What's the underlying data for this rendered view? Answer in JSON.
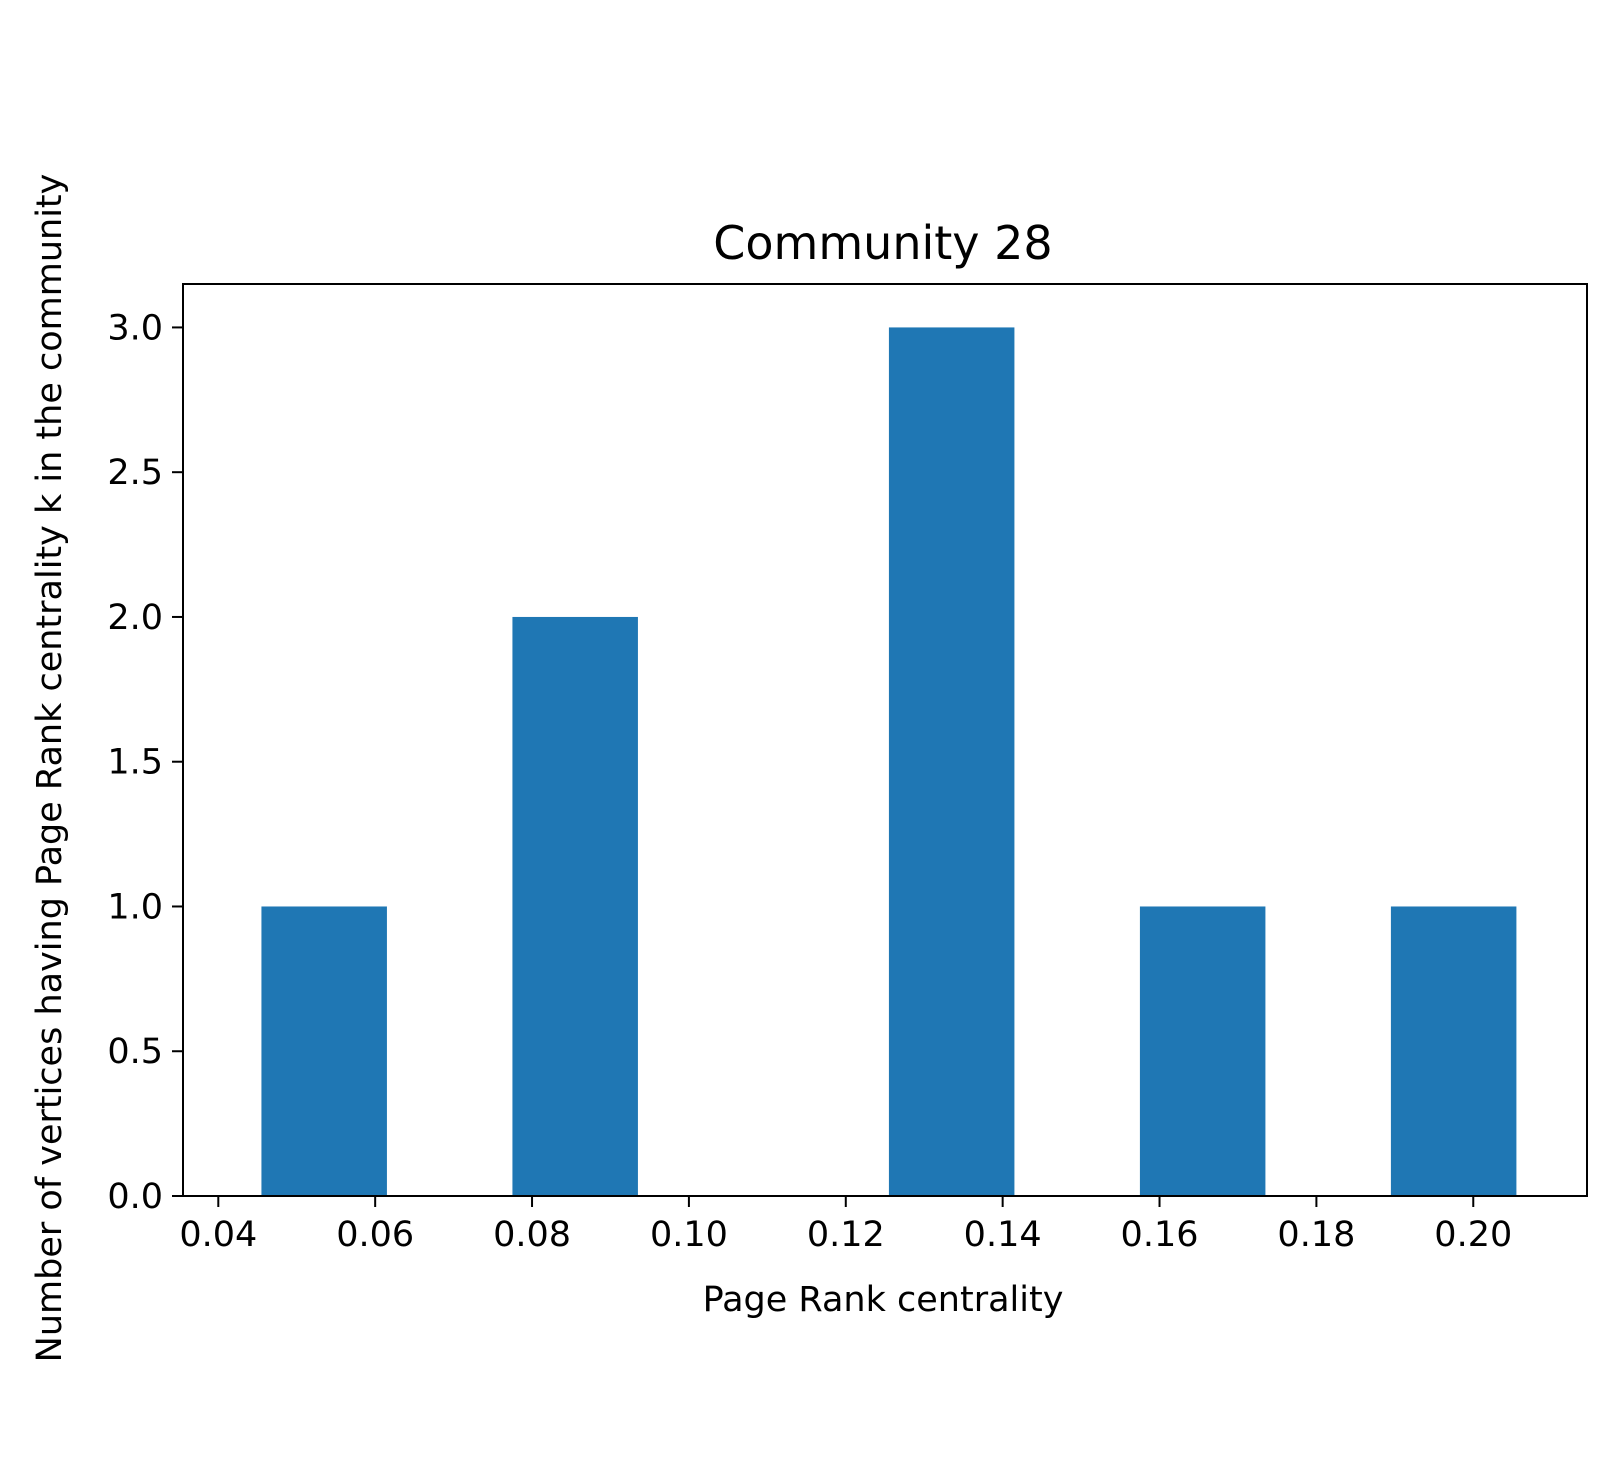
{
  "chart_data": {
    "type": "bar",
    "title": "Community 28",
    "xlabel": "Page Rank centrality",
    "ylabel": "Number of vertices having Page Rank centrality k in the community",
    "xlim": [
      0.0355,
      0.2145
    ],
    "ylim": [
      0,
      3.15
    ],
    "grid": false,
    "bar_color": "#1f77b4",
    "bar_width": 0.016,
    "bars": [
      {
        "x": 0.0535,
        "value": 1
      },
      {
        "x": 0.0855,
        "value": 2
      },
      {
        "x": 0.1335,
        "value": 3
      },
      {
        "x": 0.1655,
        "value": 1
      },
      {
        "x": 0.1975,
        "value": 1
      }
    ],
    "x_ticks": [
      {
        "value": 0.04,
        "label": "0.04"
      },
      {
        "value": 0.06,
        "label": "0.06"
      },
      {
        "value": 0.08,
        "label": "0.08"
      },
      {
        "value": 0.1,
        "label": "0.10"
      },
      {
        "value": 0.12,
        "label": "0.12"
      },
      {
        "value": 0.14,
        "label": "0.14"
      },
      {
        "value": 0.16,
        "label": "0.16"
      },
      {
        "value": 0.18,
        "label": "0.18"
      },
      {
        "value": 0.2,
        "label": "0.20"
      }
    ],
    "y_ticks": [
      {
        "value": 0.0,
        "label": "0.0"
      },
      {
        "value": 0.5,
        "label": "0.5"
      },
      {
        "value": 1.0,
        "label": "1.0"
      },
      {
        "value": 1.5,
        "label": "1.5"
      },
      {
        "value": 2.0,
        "label": "2.0"
      },
      {
        "value": 2.5,
        "label": "2.5"
      },
      {
        "value": 3.0,
        "label": "3.0"
      }
    ]
  }
}
